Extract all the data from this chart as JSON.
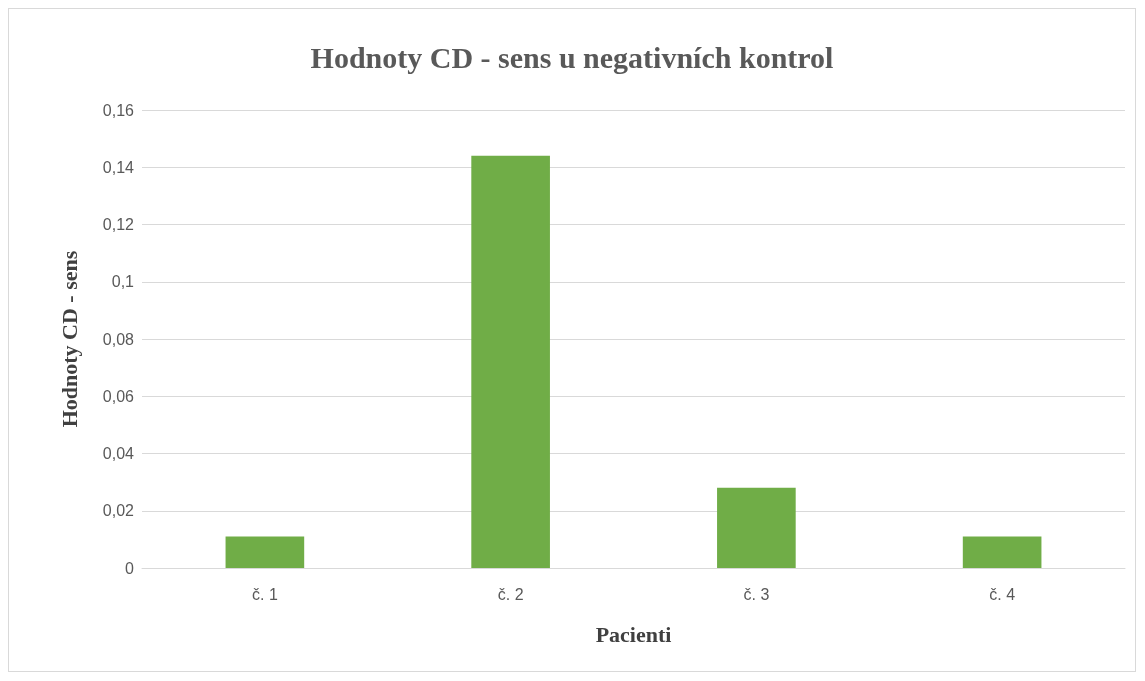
{
  "chart_data": {
    "type": "bar",
    "title": "Hodnoty CD - sens u negativních kontrol",
    "xlabel": "Pacienti",
    "ylabel": "Hodnoty CD - sens",
    "categories": [
      "č. 1",
      "č. 2",
      "č. 3",
      "č. 4"
    ],
    "values": [
      0.011,
      0.144,
      0.028,
      0.011
    ],
    "color": "#70ad47",
    "ylim": [
      0,
      0.16
    ],
    "yticks": [
      0,
      {
        "value": 0.02,
        "label": "0,02"
      },
      {
        "value": 0.04,
        "label": "0,04"
      },
      {
        "value": 0.06,
        "label": "0,06"
      },
      {
        "value": 0.08,
        "label": "0,08"
      },
      {
        "value": 0.1,
        "label": "0,1"
      },
      {
        "value": 0.12,
        "label": "0,12"
      },
      {
        "value": 0.14,
        "label": "0,14"
      },
      {
        "value": 0.16,
        "label": "0,16"
      }
    ],
    "grid": true
  }
}
